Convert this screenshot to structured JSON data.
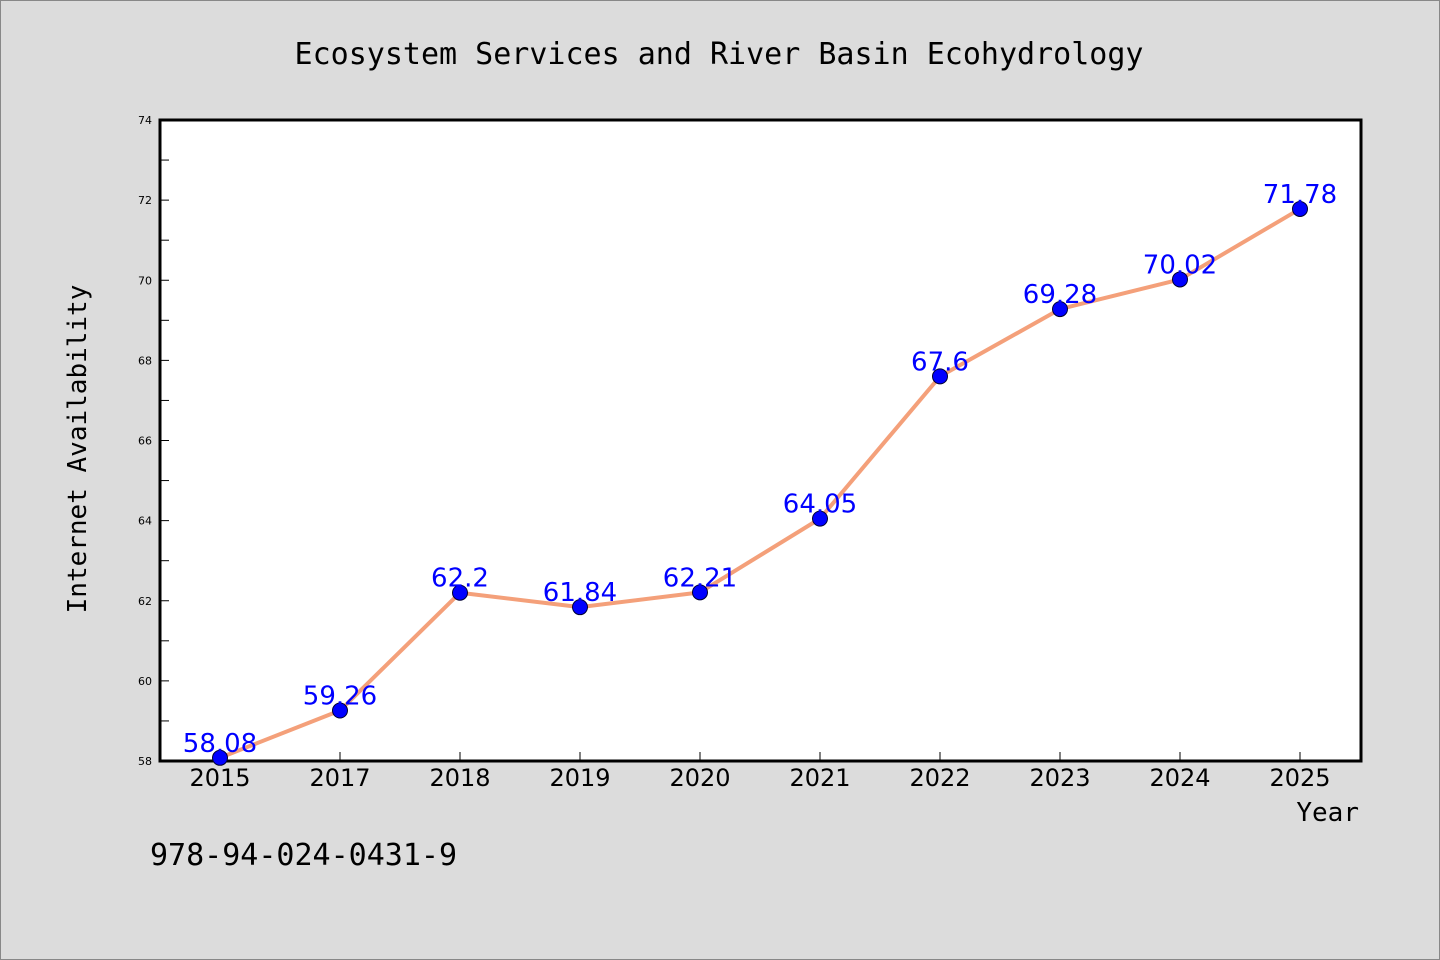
{
  "chart_data": {
    "type": "line",
    "title": "Ecosystem Services and River Basin Ecohydrology",
    "xlabel": "Year",
    "ylabel": "Internet Availability",
    "categories": [
      "2015",
      "2017",
      "2018",
      "2019",
      "2020",
      "2021",
      "2022",
      "2023",
      "2024",
      "2025"
    ],
    "series": [
      {
        "values": [
          58.08,
          59.26,
          62.2,
          61.84,
          62.21,
          64.05,
          67.6,
          69.28,
          70.02,
          71.78
        ],
        "data_labels": [
          "58.08",
          "59.26",
          "62.2",
          "61.84",
          "62.21",
          "64.05",
          "67.6",
          "69.28",
          "70.02",
          "71.78"
        ],
        "line_color": "#f4a07a",
        "marker_color": "#0000ff"
      }
    ],
    "ylim": [
      58,
      74
    ],
    "yticks": [
      "58",
      "60",
      "62",
      "64",
      "66",
      "68",
      "70",
      "72",
      "74"
    ],
    "grid": false,
    "legend": "none"
  },
  "footer": {
    "isbn": "978-94-024-0431-9"
  },
  "colors": {
    "background": "#dcdcdc",
    "plot_background": "#ffffff",
    "line": "#f4a07a",
    "marker": "#0000ff",
    "data_label": "#0000ff"
  }
}
